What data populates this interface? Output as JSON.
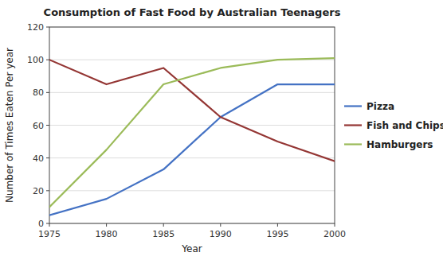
{
  "chart_data": {
    "type": "line",
    "title": "Consumption of Fast Food by Australian Teenagers",
    "x_label": "Year",
    "y_label": "Number of Times Eaten Per year",
    "x": [
      1975,
      1980,
      1985,
      1990,
      1995,
      2000
    ],
    "series": [
      {
        "name": "Pizza",
        "color": "#4472C4",
        "values": [
          5,
          15,
          33,
          65,
          85,
          85
        ]
      },
      {
        "name": "Fish and Chips",
        "color": "#943634",
        "values": [
          100,
          85,
          95,
          65,
          50,
          38
        ]
      },
      {
        "name": "Hamburgers",
        "color": "#9BBB59",
        "values": [
          10,
          45,
          85,
          95,
          100,
          101
        ]
      }
    ],
    "xlim": [
      1975,
      2000
    ],
    "xticks": [
      1975,
      1980,
      1985,
      1990,
      1995,
      2000
    ],
    "ylim": [
      0,
      120
    ],
    "yticks": [
      0,
      20,
      40,
      60,
      80,
      100,
      120
    ],
    "grid": "y",
    "legend": "right"
  }
}
